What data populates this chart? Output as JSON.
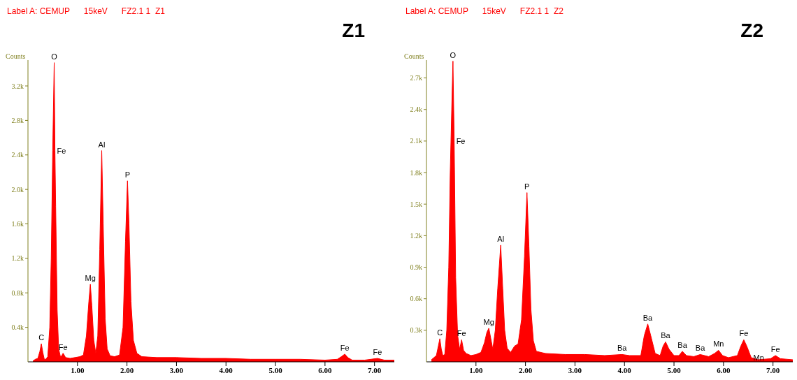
{
  "chart_data": [
    {
      "type": "area",
      "title": "Label A: CEMUP      15keV      FZ2.1 1  Z1",
      "subtitle": "Z1",
      "ylabel": "Counts",
      "xlim": [
        0,
        7.4
      ],
      "xticks": [
        {
          "value": 1,
          "label": "1.00"
        },
        {
          "value": 2,
          "label": "2.00"
        },
        {
          "value": 3,
          "label": "3.00"
        },
        {
          "value": 4,
          "label": "4.00"
        },
        {
          "value": 5,
          "label": "5.00"
        },
        {
          "value": 6,
          "label": "6.00"
        },
        {
          "value": 7,
          "label": "7.00"
        }
      ],
      "ylim": [
        0,
        3500
      ],
      "yticks": [
        {
          "value": 400,
          "label": "0.4k"
        },
        {
          "value": 800,
          "label": "0.8k"
        },
        {
          "value": 1200,
          "label": "1.2k"
        },
        {
          "value": 1600,
          "label": "1.6k"
        },
        {
          "value": 2000,
          "label": "2.0k"
        },
        {
          "value": 2400,
          "label": "2.4k"
        },
        {
          "value": 2800,
          "label": "2.8k"
        },
        {
          "value": 3200,
          "label": "3.2k"
        }
      ],
      "x": [
        0.1,
        0.15,
        0.2,
        0.24,
        0.27,
        0.3,
        0.33,
        0.36,
        0.4,
        0.44,
        0.47,
        0.5,
        0.53,
        0.545,
        0.56,
        0.59,
        0.62,
        0.66,
        0.71,
        0.76,
        0.85,
        0.95,
        1.05,
        1.12,
        1.18,
        1.23,
        1.26,
        1.29,
        1.33,
        1.37,
        1.41,
        1.45,
        1.49,
        1.52,
        1.56,
        1.6,
        1.66,
        1.75,
        1.85,
        1.92,
        1.97,
        2.01,
        2.04,
        2.08,
        2.13,
        2.2,
        2.3,
        2.6,
        3.0,
        3.5,
        4.0,
        4.5,
        5.0,
        5.5,
        6.0,
        6.25,
        6.33,
        6.4,
        6.46,
        6.55,
        6.8,
        7.06,
        7.2,
        7.4
      ],
      "series": [
        {
          "color": "#ff0000",
          "values": [
            10,
            30,
            40,
            120,
            210,
            110,
            30,
            30,
            60,
            400,
            1200,
            2450,
            3470,
            2450,
            1800,
            600,
            150,
            50,
            100,
            50,
            40,
            50,
            60,
            80,
            300,
            700,
            900,
            650,
            250,
            100,
            300,
            1300,
            2450,
            1600,
            500,
            150,
            70,
            60,
            80,
            400,
            1400,
            2100,
            1600,
            700,
            250,
            100,
            60,
            50,
            50,
            40,
            40,
            30,
            30,
            30,
            20,
            30,
            60,
            90,
            50,
            20,
            20,
            40,
            20,
            20
          ]
        }
      ],
      "annotations": [
        {
          "text": "O",
          "x": 0.53,
          "y": 3470
        },
        {
          "text": "Fe",
          "x": 0.545,
          "y": 2450
        },
        {
          "text": "Al",
          "x": 1.49,
          "y": 2450
        },
        {
          "text": "P",
          "x": 2.01,
          "y": 2100
        },
        {
          "text": "Mg",
          "x": 1.26,
          "y": 900
        },
        {
          "text": "C",
          "x": 0.27,
          "y": 210
        },
        {
          "text": "Fe",
          "x": 0.71,
          "y": 100
        },
        {
          "text": "Fe",
          "x": 6.4,
          "y": 90
        },
        {
          "text": "Fe",
          "x": 7.06,
          "y": 40
        }
      ]
    },
    {
      "type": "area",
      "title": "Label A: CEMUP      15keV      FZ2.1 1  Z2",
      "subtitle": "Z2",
      "ylabel": "Counts",
      "xlim": [
        0,
        7.4
      ],
      "xticks": [
        {
          "value": 1,
          "label": "1.00"
        },
        {
          "value": 2,
          "label": "2.00"
        },
        {
          "value": 3,
          "label": "3.00"
        },
        {
          "value": 4,
          "label": "4.00"
        },
        {
          "value": 5,
          "label": "5.00"
        },
        {
          "value": 6,
          "label": "6.00"
        },
        {
          "value": 7,
          "label": "7.00"
        }
      ],
      "ylim": [
        0,
        2870
      ],
      "yticks": [
        {
          "value": 300,
          "label": "0.3k"
        },
        {
          "value": 600,
          "label": "0.6k"
        },
        {
          "value": 900,
          "label": "0.9k"
        },
        {
          "value": 1200,
          "label": "1.2k"
        },
        {
          "value": 1500,
          "label": "1.5k"
        },
        {
          "value": 1800,
          "label": "1.8k"
        },
        {
          "value": 2100,
          "label": "2.1k"
        },
        {
          "value": 2400,
          "label": "2.4k"
        },
        {
          "value": 2700,
          "label": "2.7k"
        }
      ],
      "x": [
        0.1,
        0.15,
        0.2,
        0.24,
        0.27,
        0.3,
        0.33,
        0.37,
        0.41,
        0.45,
        0.48,
        0.51,
        0.535,
        0.56,
        0.59,
        0.63,
        0.67,
        0.71,
        0.75,
        0.8,
        0.9,
        1.0,
        1.1,
        1.17,
        1.22,
        1.26,
        1.3,
        1.34,
        1.39,
        1.44,
        1.5,
        1.54,
        1.58,
        1.63,
        1.7,
        1.78,
        1.85,
        1.92,
        1.98,
        2.03,
        2.07,
        2.11,
        2.16,
        2.22,
        2.4,
        2.8,
        3.2,
        3.6,
        3.95,
        4.1,
        4.33,
        4.4,
        4.47,
        4.53,
        4.62,
        4.72,
        4.78,
        4.83,
        4.9,
        5.0,
        5.1,
        5.17,
        5.25,
        5.4,
        5.53,
        5.7,
        5.82,
        5.9,
        5.98,
        6.1,
        6.28,
        6.35,
        6.41,
        6.47,
        6.56,
        6.7,
        6.95,
        7.05,
        7.15,
        7.4
      ],
      "series": [
        {
          "color": "#ff0000",
          "values": [
            20,
            40,
            60,
            150,
            220,
            120,
            60,
            70,
            300,
            900,
            1800,
            2400,
            2860,
            2100,
            800,
            250,
            120,
            210,
            110,
            80,
            60,
            70,
            90,
            180,
            280,
            320,
            220,
            120,
            300,
            700,
            1110,
            700,
            300,
            130,
            90,
            150,
            170,
            400,
            1000,
            1610,
            1100,
            500,
            200,
            100,
            80,
            70,
            70,
            60,
            70,
            60,
            60,
            250,
            360,
            250,
            80,
            60,
            150,
            190,
            120,
            60,
            60,
            100,
            60,
            50,
            70,
            50,
            80,
            110,
            60,
            40,
            60,
            150,
            210,
            150,
            40,
            20,
            30,
            60,
            30,
            20
          ]
        }
      ],
      "annotations": [
        {
          "text": "O",
          "x": 0.535,
          "y": 2860
        },
        {
          "text": "Fe",
          "x": 0.56,
          "y": 2100
        },
        {
          "text": "P",
          "x": 2.03,
          "y": 1610
        },
        {
          "text": "Al",
          "x": 1.5,
          "y": 1110
        },
        {
          "text": "Mg",
          "x": 1.26,
          "y": 320
        },
        {
          "text": "C",
          "x": 0.27,
          "y": 220
        },
        {
          "text": "Fe",
          "x": 0.71,
          "y": 210
        },
        {
          "text": "Ba",
          "x": 3.95,
          "y": 70
        },
        {
          "text": "Ba",
          "x": 4.47,
          "y": 360
        },
        {
          "text": "Ba",
          "x": 4.83,
          "y": 190
        },
        {
          "text": "Ba",
          "x": 5.17,
          "y": 100
        },
        {
          "text": "Ba",
          "x": 5.53,
          "y": 70
        },
        {
          "text": "Mn",
          "x": 5.9,
          "y": 110
        },
        {
          "text": "Fe",
          "x": 6.41,
          "y": 210
        },
        {
          "text": "Mn",
          "x": 6.56,
          "y": 40
        },
        {
          "text": "Fe",
          "x": 7.05,
          "y": 60
        }
      ]
    }
  ]
}
